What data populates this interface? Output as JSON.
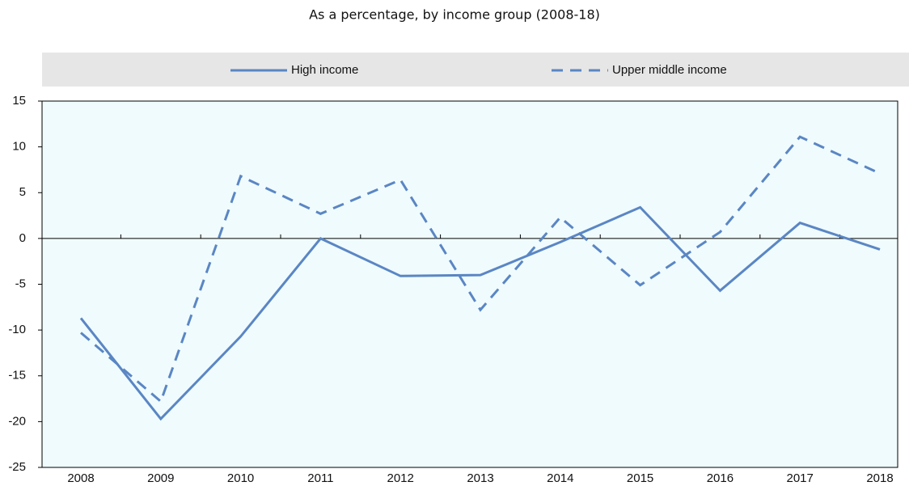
{
  "chart_data": {
    "type": "line",
    "title": "As a percentage, by income group (2008-18)",
    "categories": [
      "2008",
      "2009",
      "2010",
      "2011",
      "2012",
      "2013",
      "2014",
      "2015",
      "2016",
      "2017",
      "2018"
    ],
    "series": [
      {
        "name": "High income",
        "color": "#5a86c4",
        "dash": "solid",
        "values": [
          -8.7,
          -19.7,
          -10.7,
          0,
          -4.1,
          -4.0,
          -0.4,
          3.4,
          -5.7,
          1.7,
          -1.2
        ]
      },
      {
        "name": "Upper middle income",
        "color": "#5a86c4",
        "dash": "dashed",
        "values": [
          -10.3,
          -17.8,
          6.8,
          2.7,
          6.4,
          -7.8,
          2.3,
          -5.1,
          0.7,
          11.1,
          7.1
        ]
      }
    ],
    "ylim": [
      -25,
      15
    ],
    "yticks": [
      -25,
      -20,
      -15,
      -10,
      -5,
      0,
      5,
      10,
      15
    ],
    "grid": false,
    "legend": "top"
  }
}
